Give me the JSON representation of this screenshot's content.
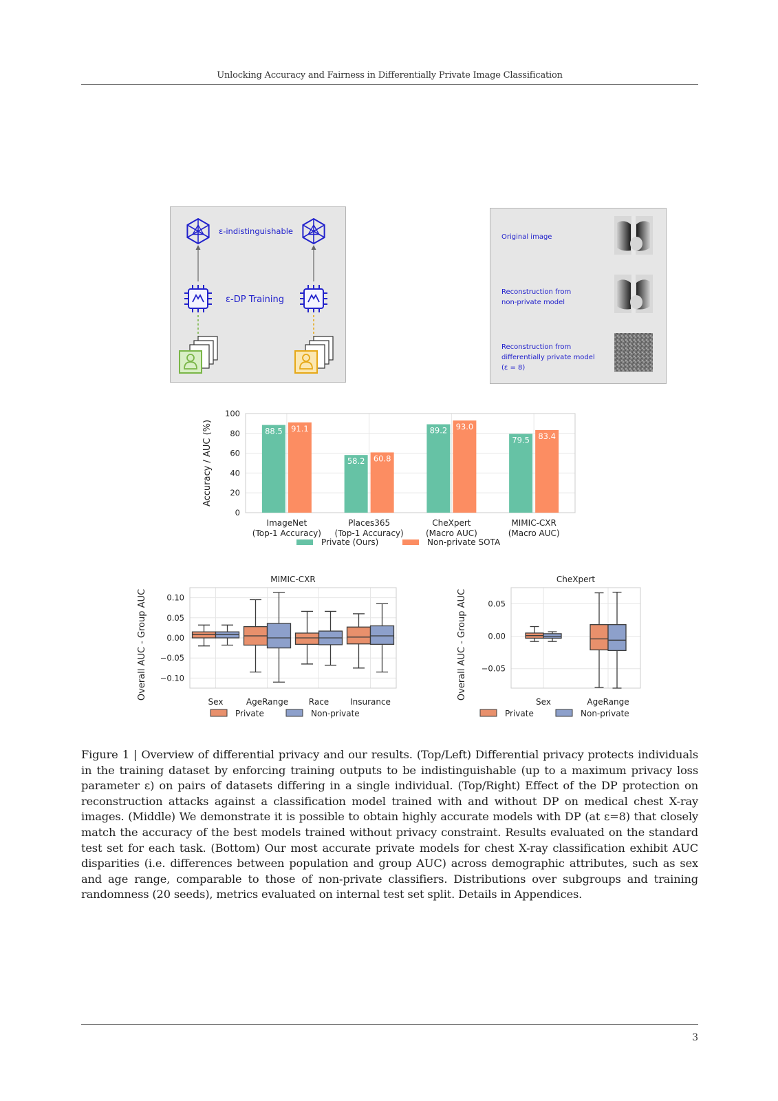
{
  "running_head": "Unlocking Accuracy and Fairness in Differentially Private Image Classification",
  "page_number": "3",
  "top_left_panel": {
    "label_indistinguishable": "ε-indistinguishable",
    "label_training": "ε-DP Training",
    "left_accent": "#7ab648",
    "right_accent": "#e6a817",
    "icon_color": "#2222cc"
  },
  "top_right_panel": {
    "rows": [
      {
        "label_lines": [
          "Original image"
        ]
      },
      {
        "label_lines": [
          "Reconstruction from",
          "non-private model"
        ]
      },
      {
        "label_lines": [
          "Reconstruction from",
          "differentially private model",
          "(ε = 8)"
        ]
      }
    ],
    "text_color": "#2222cc"
  },
  "chart_data": [
    {
      "type": "bar",
      "ylabel": "Accuracy / AUC (%)",
      "ylim": [
        0,
        100
      ],
      "yticks": [
        "0",
        "20",
        "40",
        "60",
        "80",
        "100"
      ],
      "categories": [
        [
          "ImageNet",
          "(Top-1 Accuracy)"
        ],
        [
          "Places365",
          "(Top-1 Accuracy)"
        ],
        [
          "CheXpert",
          "(Macro AUC)"
        ],
        [
          "MIMIC-CXR",
          "(Macro AUC)"
        ]
      ],
      "series": [
        {
          "name": "Private (Ours)",
          "color": "#66c2a5",
          "values": [
            88.5,
            58.2,
            89.2,
            79.5
          ],
          "labels": [
            "88.5",
            "58.2",
            "89.2",
            "79.5"
          ]
        },
        {
          "name": "Non-private SOTA",
          "color": "#fc8d62",
          "values": [
            91.1,
            60.8,
            93.0,
            83.4
          ],
          "labels": [
            "91.1",
            "60.8",
            "93.0",
            "83.4"
          ]
        }
      ],
      "legend": "bottom",
      "grid": true
    },
    {
      "type": "box",
      "title": "MIMIC-CXR",
      "ylabel": "Overall AUC - Group AUC",
      "ylim": [
        -0.125,
        0.125
      ],
      "yticks": [
        -0.1,
        -0.05,
        0.0,
        0.05,
        0.1
      ],
      "ytick_labels": [
        "−0.10",
        "−0.05",
        "0.00",
        "0.05",
        "0.10"
      ],
      "categories": [
        "Sex",
        "AgeRange",
        "Race",
        "Insurance"
      ],
      "series": [
        {
          "name": "Private",
          "color": "#e8906c",
          "boxes": [
            {
              "whislo": -0.02,
              "q1": 0.0,
              "med": 0.008,
              "q3": 0.015,
              "whishi": 0.032
            },
            {
              "whislo": -0.085,
              "q1": -0.018,
              "med": 0.005,
              "q3": 0.028,
              "whishi": 0.095
            },
            {
              "whislo": -0.065,
              "q1": -0.016,
              "med": 0.0,
              "q3": 0.012,
              "whishi": 0.066
            },
            {
              "whislo": -0.075,
              "q1": -0.015,
              "med": 0.002,
              "q3": 0.027,
              "whishi": 0.06
            }
          ]
        },
        {
          "name": "Non-private",
          "color": "#8da0cb",
          "boxes": [
            {
              "whislo": -0.018,
              "q1": 0.0,
              "med": 0.008,
              "q3": 0.015,
              "whishi": 0.032
            },
            {
              "whislo": -0.11,
              "q1": -0.025,
              "med": 0.0,
              "q3": 0.036,
              "whishi": 0.113
            },
            {
              "whislo": -0.068,
              "q1": -0.017,
              "med": 0.0,
              "q3": 0.017,
              "whishi": 0.066
            },
            {
              "whislo": -0.085,
              "q1": -0.016,
              "med": 0.005,
              "q3": 0.03,
              "whishi": 0.085
            }
          ]
        }
      ],
      "legend": "bottom"
    },
    {
      "type": "box",
      "title": "CheXpert",
      "ylabel": "Overall AUC - Group AUC",
      "ylim": [
        -0.08,
        0.075
      ],
      "yticks": [
        -0.05,
        0.0,
        0.05
      ],
      "ytick_labels": [
        "−0.05",
        "0.00",
        "0.05"
      ],
      "categories": [
        "Sex",
        "AgeRange"
      ],
      "series": [
        {
          "name": "Private",
          "color": "#e8906c",
          "boxes": [
            {
              "whislo": -0.008,
              "q1": -0.003,
              "med": 0.001,
              "q3": 0.005,
              "whishi": 0.015
            },
            {
              "whislo": -0.079,
              "q1": -0.021,
              "med": -0.004,
              "q3": 0.018,
              "whishi": 0.067
            }
          ]
        },
        {
          "name": "Non-private",
          "color": "#8da0cb",
          "boxes": [
            {
              "whislo": -0.008,
              "q1": -0.003,
              "med": 0.0,
              "q3": 0.004,
              "whishi": 0.007
            },
            {
              "whislo": -0.08,
              "q1": -0.022,
              "med": -0.006,
              "q3": 0.018,
              "whishi": 0.068
            }
          ]
        }
      ],
      "legend": "bottom"
    }
  ],
  "caption": "Figure 1 | Overview of differential privacy and our results. (Top/Left) Differential privacy protects individuals in the training dataset by enforcing training outputs to be indistinguishable (up to a maximum privacy loss parameter ε) on pairs of datasets differing in a single individual. (Top/Right) Effect of the DP protection on reconstruction attacks against a classification model trained with and without DP on medical chest X-ray images. (Middle) We demonstrate it is possible to obtain highly accurate models with DP (at ε=8) that closely match the accuracy of the best models trained without privacy constraint. Results evaluated on the standard test set for each task. (Bottom) Our most accurate private models for chest X-ray classification exhibit AUC disparities (i.e. differences between population and group AUC) across demographic attributes, such as sex and age range, comparable to those of non-private classifiers. Distributions over subgroups and training randomness (20 seeds), metrics evaluated on internal test set split. Details in Appendices."
}
